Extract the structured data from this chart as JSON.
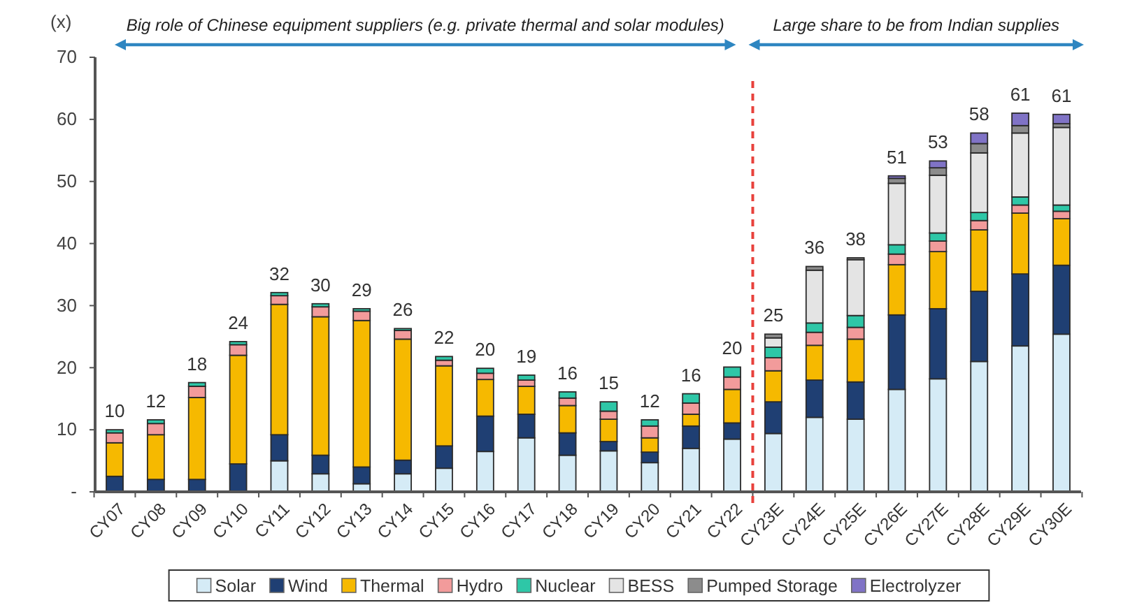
{
  "chart_data": {
    "type": "bar",
    "stacked": true,
    "ylabel": "(x)",
    "categories": [
      "CY07",
      "CY08",
      "CY09",
      "CY10",
      "CY11",
      "CY12",
      "CY13",
      "CY14",
      "CY15",
      "CY16",
      "CY17",
      "CY18",
      "CY19",
      "CY20",
      "CY21",
      "CY22",
      "CY23E",
      "CY24E",
      "CY25E",
      "CY26E",
      "CY27E",
      "CY28E",
      "CY29E",
      "CY30E"
    ],
    "series": [
      {
        "name": "Solar",
        "color": "#d5ebf6",
        "values": [
          null,
          null,
          null,
          null,
          5.0,
          2.9,
          1.3,
          2.9,
          3.8,
          6.5,
          8.7,
          5.9,
          6.6,
          4.7,
          7.0,
          8.5,
          9.4,
          12.0,
          11.7,
          16.5,
          18.2,
          21.0,
          23.5,
          25.4
        ]
      },
      {
        "name": "Wind",
        "color": "#1f3f73",
        "values": [
          2.5,
          2.0,
          2.0,
          4.5,
          4.2,
          3.0,
          2.7,
          2.2,
          3.6,
          5.7,
          3.8,
          3.6,
          1.5,
          1.7,
          3.6,
          2.6,
          5.1,
          6.0,
          6.0,
          12.0,
          11.3,
          11.3,
          11.6,
          11.1
        ]
      },
      {
        "name": "Thermal",
        "color": "#f6b900",
        "values": [
          5.4,
          7.2,
          13.2,
          17.5,
          21.0,
          22.3,
          23.6,
          19.5,
          12.9,
          5.9,
          4.5,
          4.4,
          3.6,
          2.3,
          1.9,
          5.4,
          5.0,
          5.6,
          6.9,
          8.1,
          9.2,
          9.9,
          9.8,
          7.5
        ]
      },
      {
        "name": "Hydro",
        "color": "#f29b9b",
        "values": [
          1.6,
          1.8,
          1.8,
          1.7,
          1.4,
          1.6,
          1.5,
          1.4,
          0.9,
          1.0,
          1.0,
          1.2,
          1.3,
          1.9,
          1.8,
          2.0,
          2.1,
          2.1,
          1.9,
          1.7,
          1.7,
          1.5,
          1.3,
          1.2
        ]
      },
      {
        "name": "Nuclear",
        "color": "#2ec7a7",
        "values": [
          0.5,
          0.6,
          0.6,
          0.5,
          0.5,
          0.5,
          0.4,
          0.3,
          0.6,
          0.8,
          0.8,
          1.0,
          1.5,
          1.0,
          1.5,
          1.6,
          1.7,
          1.5,
          1.9,
          1.5,
          1.3,
          1.3,
          1.3,
          1.0
        ]
      },
      {
        "name": "BESS",
        "color": "#e4e4e4",
        "values": [
          null,
          null,
          null,
          null,
          null,
          null,
          null,
          null,
          null,
          null,
          null,
          null,
          null,
          null,
          null,
          null,
          1.5,
          8.5,
          9.0,
          9.9,
          9.3,
          9.6,
          10.3,
          12.5
        ]
      },
      {
        "name": "Pumped Storage",
        "color": "#8c8c8c",
        "values": [
          null,
          null,
          null,
          null,
          null,
          null,
          null,
          null,
          null,
          null,
          null,
          null,
          null,
          null,
          null,
          null,
          0.6,
          0.6,
          0.3,
          0.8,
          1.2,
          1.5,
          1.2,
          0.6
        ]
      },
      {
        "name": "Electrolyzer",
        "color": "#8073c6",
        "values": [
          null,
          null,
          null,
          null,
          null,
          null,
          null,
          null,
          null,
          null,
          null,
          null,
          null,
          null,
          null,
          null,
          null,
          null,
          null,
          0.4,
          1.1,
          1.7,
          2.0,
          1.5
        ]
      }
    ],
    "totals": [
      "10",
      "12",
      "18",
      "24",
      "32",
      "30",
      "29",
      "26",
      "22",
      "20",
      "19",
      "16",
      "15",
      "12",
      "16",
      "20",
      "25",
      "36",
      "38",
      "51",
      "53",
      "58",
      "61",
      "61"
    ],
    "ylim": [
      0,
      70
    ],
    "yticks": [
      {
        "value": 0,
        "label": "-"
      },
      10,
      20,
      30,
      40,
      50,
      60,
      70
    ],
    "legend": "bottom",
    "annotations": [
      "Big role of Chinese equipment suppliers (e.g. private thermal and solar modules)",
      "Large share to be from Indian supplies"
    ]
  }
}
